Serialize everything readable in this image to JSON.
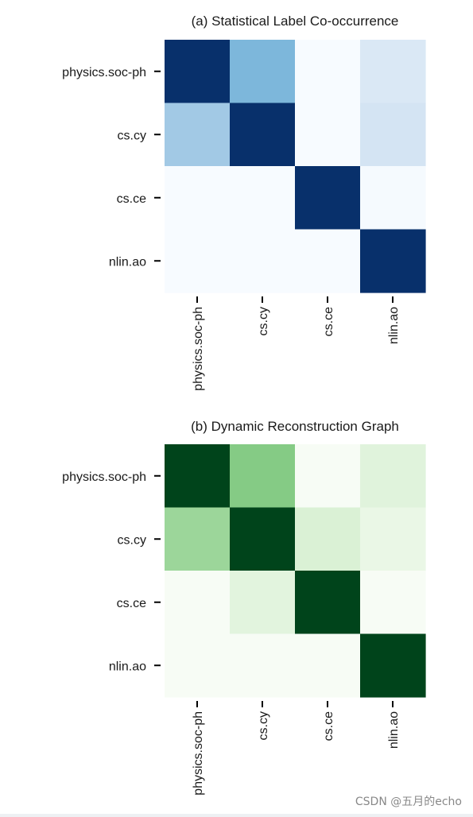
{
  "watermark": "CSDN @五月的echo",
  "chart_data": [
    {
      "type": "heatmap",
      "title": "(a) Statistical Label Co-occurrence",
      "colormap": "Blues",
      "colors": [
        "#f7fbff",
        "#c6dbef",
        "#6baed6",
        "#2171b5",
        "#08306b"
      ],
      "rows": [
        "physics.soc-ph",
        "cs.cy",
        "cs.ce",
        "nlin.ao"
      ],
      "cols": [
        "physics.soc-ph",
        "cs.cy",
        "cs.ce",
        "nlin.ao"
      ],
      "values": [
        [
          1.0,
          0.45,
          0.0,
          0.15
        ],
        [
          0.35,
          1.0,
          0.0,
          0.18
        ],
        [
          0.0,
          0.0,
          1.0,
          0.01
        ],
        [
          0.0,
          0.0,
          0.0,
          1.0
        ]
      ],
      "vmin": 0,
      "vmax": 1,
      "grid": false,
      "legend": "none"
    },
    {
      "type": "heatmap",
      "title": "(b) Dynamic Reconstruction Graph",
      "colormap": "Greens",
      "colors": [
        "#f7fcf5",
        "#c7e9c0",
        "#74c476",
        "#238b45",
        "#00441b"
      ],
      "rows": [
        "physics.soc-ph",
        "cs.cy",
        "cs.ce",
        "nlin.ao"
      ],
      "cols": [
        "physics.soc-ph",
        "cs.cy",
        "cs.ce",
        "nlin.ao"
      ],
      "values": [
        [
          1.0,
          0.45,
          0.0,
          0.12
        ],
        [
          0.38,
          1.0,
          0.15,
          0.07
        ],
        [
          0.0,
          0.11,
          1.0,
          0.0
        ],
        [
          0.0,
          0.0,
          0.0,
          1.0
        ]
      ],
      "vmin": 0,
      "vmax": 1,
      "grid": false,
      "legend": "none"
    }
  ]
}
